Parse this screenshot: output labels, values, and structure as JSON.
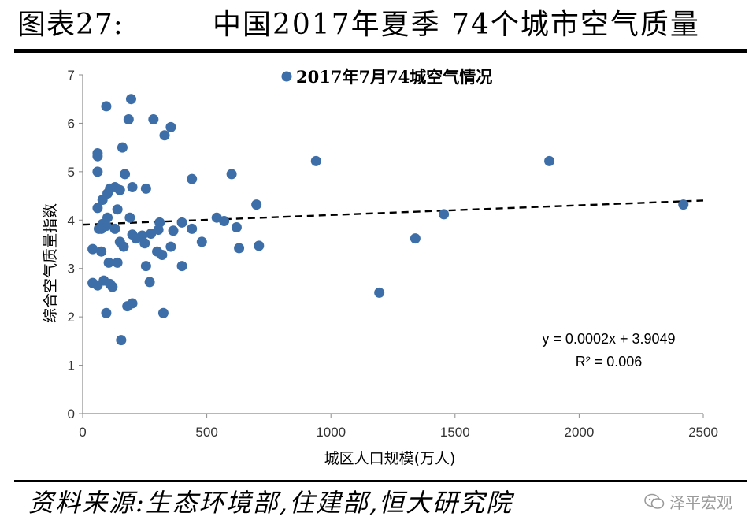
{
  "figure": {
    "label": "图表27:",
    "title": "中国2017年夏季  74个城市空气质量",
    "source": "资料来源:生态环境部,住建部,恒大研究院",
    "watermark": "泽平宏观",
    "watermark_icon": "wechat-icon"
  },
  "chart_data": {
    "type": "scatter",
    "title": "",
    "xlabel": "城区人口规模(万人)",
    "ylabel": "综合空气质量指数",
    "xlim": [
      0,
      2500
    ],
    "ylim": [
      0,
      7
    ],
    "x_ticks": [
      "0",
      "500",
      "1000",
      "1500",
      "2000",
      "2500"
    ],
    "y_ticks": [
      "0",
      "1",
      "2",
      "3",
      "4",
      "5",
      "6",
      "7"
    ],
    "grid": false,
    "legend_position": "top-center",
    "colors": {
      "marker": "#3d6ea8",
      "trendline": "#000000"
    },
    "series": [
      {
        "name": "2017年7月74城空气情况",
        "marker": "circle",
        "points": [
          [
            95,
            6.35
          ],
          [
            195,
            6.5
          ],
          [
            185,
            6.08
          ],
          [
            285,
            6.08
          ],
          [
            355,
            5.92
          ],
          [
            330,
            5.75
          ],
          [
            60,
            5.38
          ],
          [
            60,
            5.32
          ],
          [
            160,
            5.5
          ],
          [
            60,
            5.0
          ],
          [
            170,
            4.95
          ],
          [
            940,
            5.22
          ],
          [
            1880,
            5.22
          ],
          [
            600,
            4.95
          ],
          [
            440,
            4.85
          ],
          [
            110,
            4.65
          ],
          [
            130,
            4.68
          ],
          [
            150,
            4.62
          ],
          [
            200,
            4.68
          ],
          [
            255,
            4.65
          ],
          [
            100,
            4.55
          ],
          [
            80,
            4.42
          ],
          [
            60,
            4.25
          ],
          [
            140,
            4.22
          ],
          [
            700,
            4.32
          ],
          [
            2420,
            4.32
          ],
          [
            100,
            4.05
          ],
          [
            80,
            3.92
          ],
          [
            75,
            3.82
          ],
          [
            190,
            4.05
          ],
          [
            95,
            3.88
          ],
          [
            310,
            3.95
          ],
          [
            400,
            3.95
          ],
          [
            540,
            4.05
          ],
          [
            570,
            3.98
          ],
          [
            1455,
            4.12
          ],
          [
            200,
            3.7
          ],
          [
            240,
            3.68
          ],
          [
            275,
            3.72
          ],
          [
            305,
            3.8
          ],
          [
            365,
            3.78
          ],
          [
            440,
            3.82
          ],
          [
            620,
            3.85
          ],
          [
            150,
            3.55
          ],
          [
            165,
            3.45
          ],
          [
            480,
            3.55
          ],
          [
            355,
            3.45
          ],
          [
            630,
            3.42
          ],
          [
            710,
            3.47
          ],
          [
            1340,
            3.62
          ],
          [
            40,
            3.4
          ],
          [
            75,
            3.35
          ],
          [
            105,
            3.12
          ],
          [
            140,
            3.12
          ],
          [
            300,
            3.35
          ],
          [
            320,
            3.28
          ],
          [
            255,
            3.05
          ],
          [
            400,
            3.05
          ],
          [
            270,
            2.72
          ],
          [
            40,
            2.7
          ],
          [
            60,
            2.65
          ],
          [
            85,
            2.75
          ],
          [
            110,
            2.68
          ],
          [
            1195,
            2.5
          ],
          [
            180,
            2.22
          ],
          [
            200,
            2.28
          ],
          [
            95,
            2.08
          ],
          [
            325,
            2.08
          ],
          [
            155,
            1.52
          ],
          [
            250,
            3.52
          ],
          [
            130,
            3.82
          ],
          [
            65,
            3.82
          ],
          [
            120,
            2.62
          ],
          [
            215,
            3.62
          ]
        ]
      }
    ],
    "trendline": {
      "style": "dashed",
      "slope": 0.0002,
      "intercept": 3.9049,
      "x_range": [
        0,
        2500
      ],
      "equation": "y = 0.0002x + 3.9049",
      "r_squared": "R² = 0.006"
    }
  }
}
